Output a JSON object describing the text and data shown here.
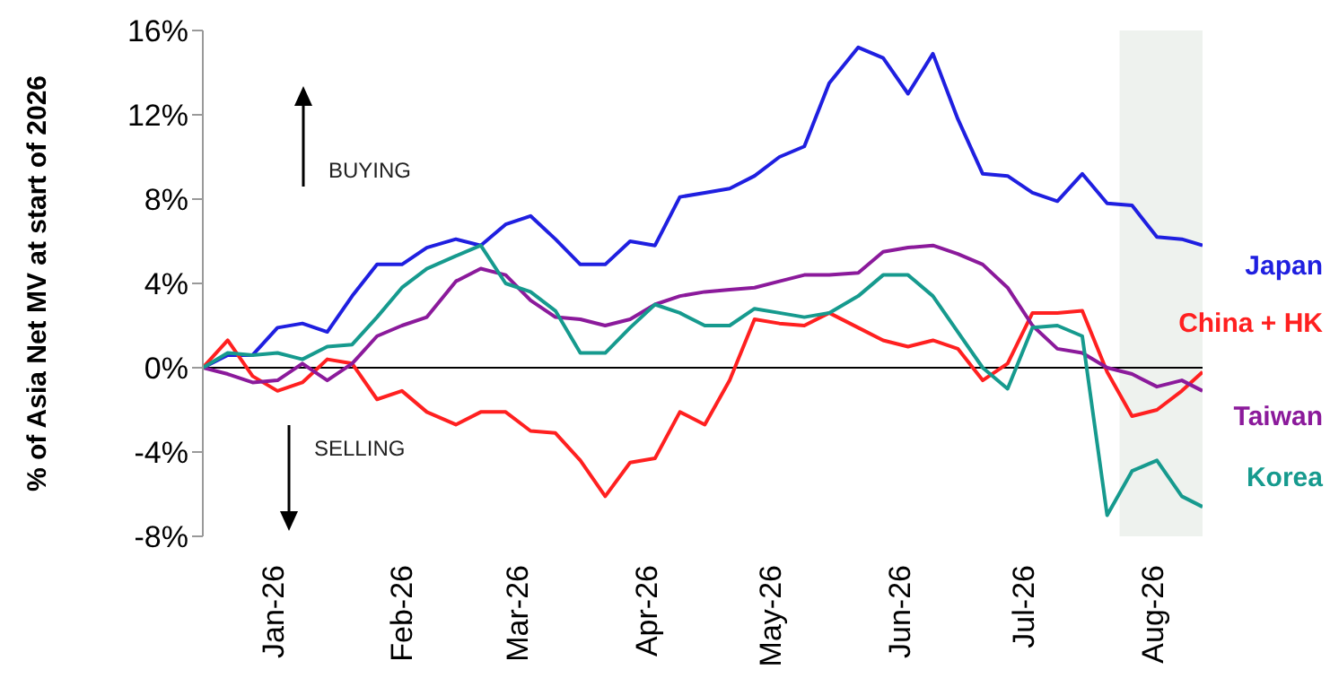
{
  "chart_data": {
    "type": "line",
    "ylabel": "% of Asia Net MV at start of 2026",
    "x": [
      "2025-12-15",
      "2025-12-21",
      "2025-12-27",
      "2026-01-02",
      "2026-01-08",
      "2026-01-14",
      "2026-01-20",
      "2026-01-26",
      "2026-02-01",
      "2026-02-07",
      "2026-02-14",
      "2026-02-20",
      "2026-02-26",
      "2026-03-04",
      "2026-03-10",
      "2026-03-16",
      "2026-03-22",
      "2026-03-28",
      "2026-04-03",
      "2026-04-09",
      "2026-04-15",
      "2026-04-21",
      "2026-04-27",
      "2026-05-03",
      "2026-05-09",
      "2026-05-15",
      "2026-05-22",
      "2026-05-28",
      "2026-06-03",
      "2026-06-09",
      "2026-06-15",
      "2026-06-21",
      "2026-06-27",
      "2026-07-03",
      "2026-07-09",
      "2026-07-15",
      "2026-07-21",
      "2026-07-27",
      "2026-08-02",
      "2026-08-08",
      "2026-08-13"
    ],
    "series": [
      {
        "name": "Japan",
        "color": "#1f1fe0",
        "values": [
          0,
          0.6,
          0.6,
          1.9,
          2.1,
          1.7,
          3.4,
          4.9,
          4.9,
          5.7,
          6.1,
          5.8,
          6.8,
          7.2,
          6.1,
          4.9,
          4.9,
          6.0,
          5.8,
          8.1,
          8.3,
          8.5,
          9.1,
          10.0,
          10.5,
          13.5,
          15.2,
          14.7,
          13.0,
          14.9,
          11.8,
          9.2,
          9.1,
          8.3,
          7.9,
          9.2,
          7.8,
          7.7,
          6.2,
          6.1,
          5.8
        ]
      },
      {
        "name": "China + HK",
        "color": "#ff2020",
        "values": [
          0,
          1.3,
          -0.4,
          -1.1,
          -0.7,
          0.4,
          0.2,
          -1.5,
          -1.1,
          -2.1,
          -2.7,
          -2.1,
          -2.1,
          -3.0,
          -3.1,
          -4.4,
          -6.1,
          -4.5,
          -4.3,
          -2.1,
          -2.7,
          -0.6,
          2.3,
          2.1,
          2.0,
          2.6,
          1.9,
          1.3,
          1.0,
          1.3,
          0.9,
          -0.6,
          0.2,
          2.6,
          2.6,
          2.7,
          -0.2,
          -2.3,
          -2.0,
          -1.1,
          -0.2
        ]
      },
      {
        "name": "Taiwan",
        "color": "#8b1a9b",
        "values": [
          0,
          -0.3,
          -0.7,
          -0.6,
          0.2,
          -0.6,
          0.2,
          1.5,
          2.0,
          2.4,
          4.1,
          4.7,
          4.4,
          3.2,
          2.4,
          2.3,
          2.0,
          2.3,
          3.0,
          3.4,
          3.6,
          3.7,
          3.8,
          4.1,
          4.4,
          4.4,
          4.5,
          5.5,
          5.7,
          5.8,
          5.4,
          4.9,
          3.8,
          2.0,
          0.9,
          0.7,
          0,
          -0.3,
          -0.9,
          -0.6,
          -1.1
        ]
      },
      {
        "name": "Korea",
        "color": "#169a8e",
        "values": [
          0,
          0.7,
          0.6,
          0.7,
          0.4,
          1.0,
          1.1,
          2.4,
          3.8,
          4.7,
          5.3,
          5.8,
          4.0,
          3.6,
          2.7,
          0.7,
          0.7,
          1.9,
          3.0,
          2.6,
          2.0,
          2.0,
          2.8,
          2.6,
          2.4,
          2.6,
          3.4,
          4.4,
          4.4,
          3.4,
          1.7,
          0,
          -1.0,
          1.9,
          2.0,
          1.5,
          -7.0,
          -4.9,
          -4.4,
          -6.1,
          -6.6
        ]
      }
    ],
    "xlim": [
      "2025-12-15",
      "2026-08-13"
    ],
    "xticks": [
      {
        "value": "2026-01-01",
        "label": "Jan-26"
      },
      {
        "value": "2026-02-01",
        "label": "Feb-26"
      },
      {
        "value": "2026-03-01",
        "label": "Mar-26"
      },
      {
        "value": "2026-04-01",
        "label": "Apr-26"
      },
      {
        "value": "2026-05-01",
        "label": "May-26"
      },
      {
        "value": "2026-06-01",
        "label": "Jun-26"
      },
      {
        "value": "2026-07-01",
        "label": "Jul-26"
      },
      {
        "value": "2026-08-01",
        "label": "Aug-26"
      }
    ],
    "ylim": [
      -8,
      16
    ],
    "yticks": [
      {
        "value": -8,
        "label": "-8%"
      },
      {
        "value": -4,
        "label": "-4%"
      },
      {
        "value": 0,
        "label": "0%"
      },
      {
        "value": 4,
        "label": "4%"
      },
      {
        "value": 8,
        "label": "8%"
      },
      {
        "value": 12,
        "label": "12%"
      },
      {
        "value": 16,
        "label": "16%"
      }
    ],
    "ref_lines": [
      {
        "axis": "y",
        "value": 0,
        "color": "#000000"
      }
    ],
    "bands": [
      {
        "axis": "x",
        "from": "2026-07-24",
        "to": "2026-08-13",
        "color": "#eef2ee"
      }
    ],
    "annotations": [
      "BUYING",
      "SELLING"
    ],
    "marker": "none",
    "line_style": "solid"
  }
}
